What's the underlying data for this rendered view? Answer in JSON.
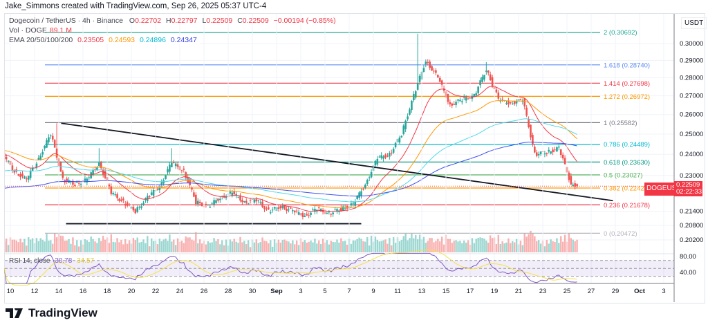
{
  "credit": "Jake_Simmons created with TradingView.com, Sep 26, 2025 05:37 UTC-4",
  "legend": {
    "symbol": "Dogecoin / TetherUS · 4h · Binance",
    "o_label": "O",
    "o": "0.22702",
    "h_label": "H",
    "h": "0.22797",
    "l_label": "L",
    "l": "0.22509",
    "c_label": "C",
    "c": "0.22509",
    "change": "−0.00194 (−0.85%)",
    "vol_label": "Vol · DOGE",
    "vol": "89.1 M",
    "ema_label": "EMA 20/50/100/200",
    "ema20": "0.23505",
    "ema50": "0.24593",
    "ema100": "0.24896",
    "ema200": "0.24347",
    "rsi_label": "RSI 14, close",
    "rsi": "30.78",
    "rsi_ma": "34.57"
  },
  "price_axis": {
    "currency": "USDT",
    "ticks": [
      "0.30000",
      "0.29000",
      "0.28000",
      "0.27000",
      "0.26000",
      "0.25000",
      "0.24000",
      "0.23000",
      "0.21400",
      "0.20800",
      "0.20200"
    ],
    "scale": "log"
  },
  "rsi_axis": {
    "ticks": [
      "80.00",
      "40.00"
    ]
  },
  "time_axis": {
    "ticks": [
      {
        "label": "10",
        "day": 1
      },
      {
        "label": "12",
        "day": 3
      },
      {
        "label": "14",
        "day": 5
      },
      {
        "label": "16",
        "day": 7
      },
      {
        "label": "18",
        "day": 9
      },
      {
        "label": "20",
        "day": 11
      },
      {
        "label": "22",
        "day": 13
      },
      {
        "label": "24",
        "day": 15
      },
      {
        "label": "26",
        "day": 17
      },
      {
        "label": "28",
        "day": 19
      },
      {
        "label": "30",
        "day": 21
      },
      {
        "label": "Sep",
        "day": 23
      },
      {
        "label": "3",
        "day": 25
      },
      {
        "label": "5",
        "day": 27
      },
      {
        "label": "7",
        "day": 29
      },
      {
        "label": "9",
        "day": 31
      },
      {
        "label": "11",
        "day": 33
      },
      {
        "label": "13",
        "day": 35
      },
      {
        "label": "15",
        "day": 37
      },
      {
        "label": "17",
        "day": 39
      },
      {
        "label": "19",
        "day": 41
      },
      {
        "label": "21",
        "day": 43
      },
      {
        "label": "23",
        "day": 45
      },
      {
        "label": "25",
        "day": 47
      },
      {
        "label": "27",
        "day": 49
      },
      {
        "label": "29",
        "day": 51
      },
      {
        "label": "Oct",
        "day": 53
      },
      {
        "label": "3",
        "day": 55
      }
    ]
  },
  "last_price": {
    "symbol": "DOGEUSDT",
    "price": "0.22509",
    "countdown": "02:22:33",
    "color": "#f23645"
  },
  "colors": {
    "up": "#26a69a",
    "down": "#ef5350",
    "ema20": "#f23645",
    "ema50": "#ff9800",
    "ema100": "#4dd7ea",
    "ema200": "#3d4ff0",
    "rsi": "#7e57c2",
    "rsi_ma": "#f5e146"
  },
  "fib_levels": [
    {
      "label": "2 (0.30692)",
      "price": 0.30692,
      "color": "#22ab94"
    },
    {
      "label": "1.618 (0.28740)",
      "price": 0.2874,
      "color": "#5b8cf6"
    },
    {
      "label": "1.414 (0.27698)",
      "price": 0.27698,
      "color": "#f23645"
    },
    {
      "label": "1.272 (0.26972)",
      "price": 0.26972,
      "color": "#ff9800"
    },
    {
      "label": "1 (0.25582)",
      "price": 0.25582,
      "color": "#787b86"
    },
    {
      "label": "0.786 (0.24489)",
      "price": 0.24489,
      "color": "#00bcd4"
    },
    {
      "label": "0.618 (0.23630)",
      "price": 0.2363,
      "color": "#089981"
    },
    {
      "label": "0.5 (0.23027)",
      "price": 0.23027,
      "color": "#4caf50"
    },
    {
      "label": "0.382 (0.22424)",
      "price": 0.22424,
      "color": "#ff9800"
    },
    {
      "label": "0.236 (0.21678)",
      "price": 0.21678,
      "color": "#f23645"
    },
    {
      "label": "0 (0.20472)",
      "price": 0.20472,
      "color": "#b2b5be"
    }
  ],
  "chart_data": {
    "type": "candlestick",
    "title": "Dogecoin / TetherUS · 4h · Binance",
    "x_unit": "day (Aug 9 = 0)",
    "daily_closes": [
      0.24,
      0.232,
      0.228,
      0.238,
      0.25,
      0.228,
      0.226,
      0.228,
      0.236,
      0.222,
      0.218,
      0.214,
      0.22,
      0.225,
      0.236,
      0.232,
      0.218,
      0.216,
      0.22,
      0.222,
      0.218,
      0.219,
      0.214,
      0.216,
      0.214,
      0.212,
      0.215,
      0.213,
      0.215,
      0.217,
      0.226,
      0.238,
      0.24,
      0.25,
      0.27,
      0.29,
      0.28,
      0.265,
      0.268,
      0.27,
      0.285,
      0.268,
      0.266,
      0.268,
      0.24,
      0.241,
      0.243,
      0.226,
      0.2251
    ],
    "ylim": [
      0.199,
      0.312
    ],
    "trendlines": [
      {
        "name": "descending",
        "from": {
          "day": 5.2,
          "price": 0.2555
        },
        "to": {
          "day": 50.8,
          "price": 0.2186
        }
      },
      {
        "name": "support",
        "from": {
          "day": 5.6,
          "price": 0.2087
        },
        "to": {
          "day": 30,
          "price": 0.2087
        }
      }
    ],
    "ema_periods": [
      20,
      50,
      100,
      200
    ]
  }
}
